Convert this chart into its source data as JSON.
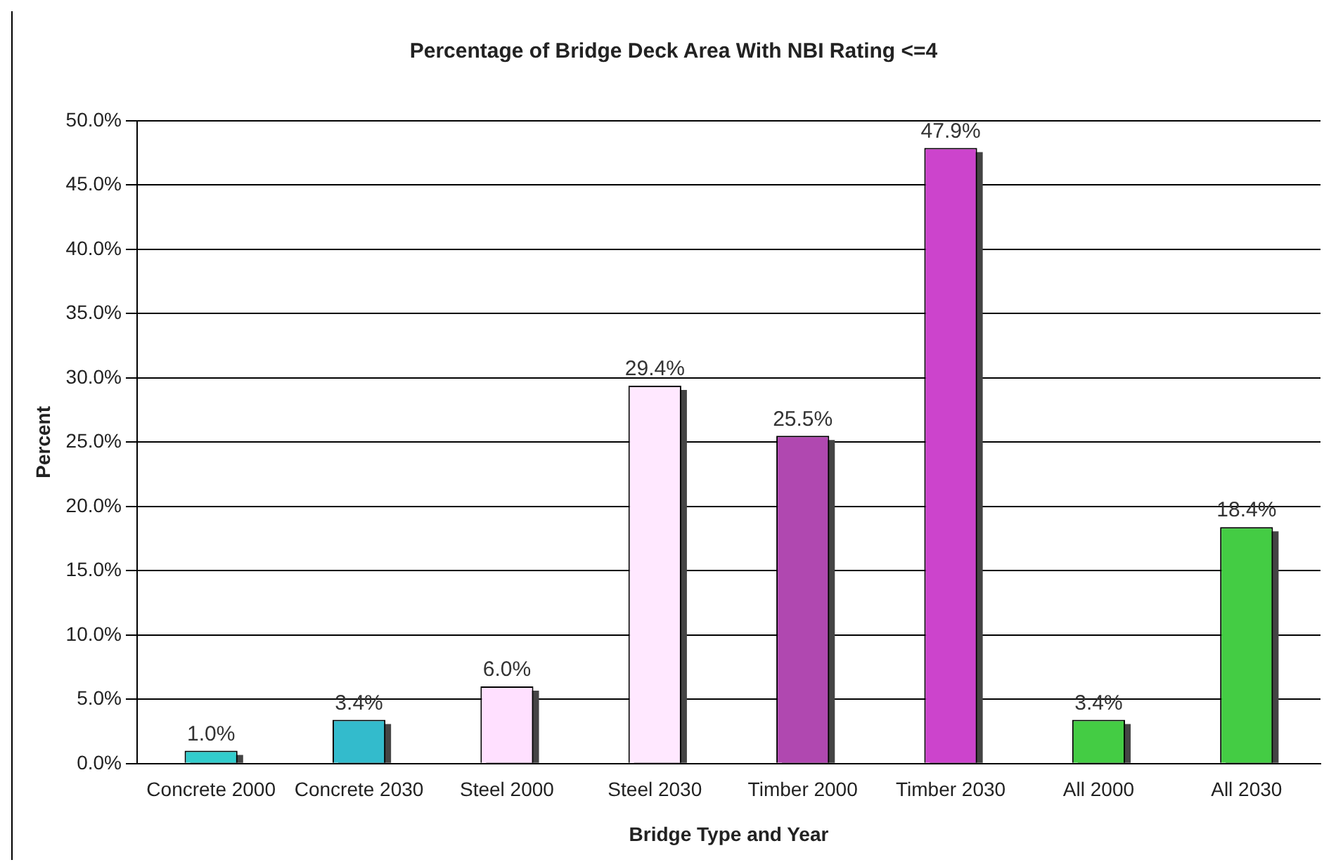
{
  "chart_data": {
    "type": "bar",
    "title": "Percentage of Bridge Deck Area With NBI Rating <=4",
    "xlabel": "Bridge Type and Year",
    "ylabel": "Percent",
    "categories": [
      "Concrete 2000",
      "Concrete 2030",
      "Steel 2000",
      "Steel 2030",
      "Timber 2000",
      "Timber 2030",
      "All 2000",
      "All 2030"
    ],
    "values": [
      1.0,
      3.4,
      6.0,
      29.4,
      25.5,
      47.9,
      3.4,
      18.4
    ],
    "colors": [
      "#33cccc",
      "#33bbcc",
      "#ffe0ff",
      "#ffe8ff",
      "#b048b0",
      "#cc44cc",
      "#44cc44",
      "#44cc44"
    ],
    "value_labels": [
      "1.0%",
      "3.4%",
      "6.0%",
      "29.4%",
      "25.5%",
      "47.9%",
      "3.4%",
      "18.4%"
    ],
    "ylim": [
      0,
      50
    ],
    "yticks": [
      {
        "value": 0,
        "label": "0.0%"
      },
      {
        "value": 5,
        "label": "5.0%"
      },
      {
        "value": 10,
        "label": "10.0%"
      },
      {
        "value": 15,
        "label": "15.0%"
      },
      {
        "value": 20,
        "label": "20.0%"
      },
      {
        "value": 25,
        "label": "25.0%"
      },
      {
        "value": 30,
        "label": "30.0%"
      },
      {
        "value": 35,
        "label": "35.0%"
      },
      {
        "value": 40,
        "label": "40.0%"
      },
      {
        "value": 45,
        "label": "45.0%"
      },
      {
        "value": 50,
        "label": "50.0%"
      }
    ],
    "grid": "y",
    "legend": false
  }
}
